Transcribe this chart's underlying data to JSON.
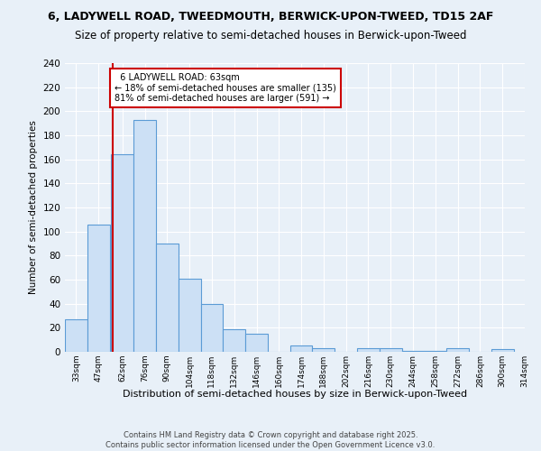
{
  "title": "6, LADYWELL ROAD, TWEEDMOUTH, BERWICK-UPON-TWEED, TD15 2AF",
  "subtitle": "Size of property relative to semi-detached houses in Berwick-upon-Tweed",
  "xlabel": "Distribution of semi-detached houses by size in Berwick-upon-Tweed",
  "ylabel": "Number of semi-detached properties",
  "bin_labels": [
    "33sqm",
    "47sqm",
    "62sqm",
    "76sqm",
    "90sqm",
    "104sqm",
    "118sqm",
    "132sqm",
    "146sqm",
    "160sqm",
    "174sqm",
    "188sqm",
    "202sqm",
    "216sqm",
    "230sqm",
    "244sqm",
    "258sqm",
    "272sqm",
    "286sqm",
    "300sqm",
    "314sqm"
  ],
  "bin_edges": [
    33,
    47,
    62,
    76,
    90,
    104,
    118,
    132,
    146,
    160,
    174,
    188,
    202,
    216,
    230,
    244,
    258,
    272,
    286,
    300,
    314
  ],
  "bar_values": [
    27,
    106,
    164,
    193,
    90,
    61,
    40,
    19,
    15,
    0,
    5,
    3,
    0,
    3,
    3,
    1,
    1,
    3,
    0,
    2
  ],
  "bar_color": "#cce0f5",
  "bar_edge_color": "#5b9bd5",
  "property_value": 63,
  "property_line_color": "#cc0000",
  "property_label": "6 LADYWELL ROAD: 63sqm",
  "pct_smaller": 18,
  "pct_larger": 81,
  "count_smaller": 135,
  "count_larger": 591,
  "ylim": [
    0,
    240
  ],
  "annotation_box_color": "#cc0000",
  "footer": "Contains HM Land Registry data © Crown copyright and database right 2025.\nContains public sector information licensed under the Open Government Licence v3.0.",
  "bg_color": "#e8f0f8",
  "grid_color": "#ffffff",
  "title_fontsize": 9,
  "subtitle_fontsize": 8.5
}
